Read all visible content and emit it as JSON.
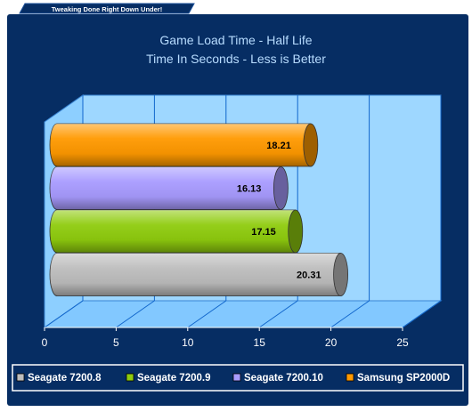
{
  "banner": {
    "text": "Tweaking Done Right Down Under!"
  },
  "colors": {
    "background": "#062D63",
    "frame": "#FFFFFF",
    "title": "#B7DCFF",
    "plot_back": "#9ED7FF",
    "plot_floor": "#82C8FF",
    "gridline": "#1166CC",
    "axis_text": "#FFFFFF"
  },
  "chart_data": {
    "type": "bar",
    "orientation": "horizontal",
    "style": "3d-cylinder",
    "title": "Game Load Time - Half Life",
    "subtitle": "Time In Seconds - Less is Better",
    "xlabel": "",
    "ylabel": "",
    "xlim": [
      0,
      25
    ],
    "xticks": [
      0,
      5,
      10,
      15,
      20,
      25
    ],
    "grid": true,
    "legend_position": "bottom",
    "series": [
      {
        "name": "Seagate 7200.8",
        "value": 20.31,
        "label": "20.31",
        "color": "#BDBDBD"
      },
      {
        "name": "Seagate 7200.9",
        "value": 17.15,
        "label": "17.15",
        "color": "#8FCC0E"
      },
      {
        "name": "Seagate 7200.10",
        "value": 16.13,
        "label": "16.13",
        "color": "#A89BFF"
      },
      {
        "name": "Samsung SP2000D",
        "value": 18.21,
        "label": "18.21",
        "color": "#FF9900"
      }
    ]
  }
}
